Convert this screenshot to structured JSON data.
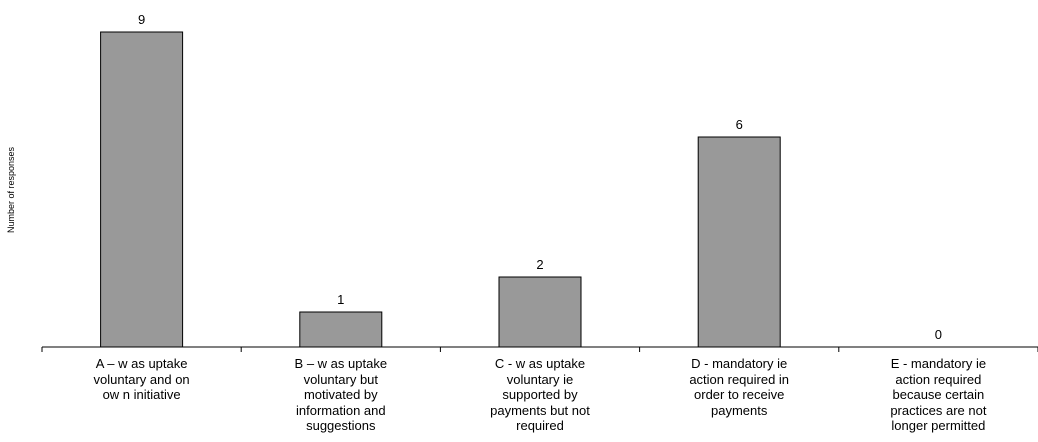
{
  "chart_data": {
    "type": "bar",
    "ylabel": "Number of responses",
    "ylim": [
      0,
      9
    ],
    "grid": false,
    "legend": "none",
    "categories": [
      [
        "A – w as uptake",
        "voluntary and on",
        "ow n initiative"
      ],
      [
        "B – w as uptake",
        "voluntary but",
        "motivated by",
        "information and",
        "suggestions"
      ],
      [
        "C - w as uptake",
        "voluntary ie",
        "supported by",
        "payments but not",
        "required"
      ],
      [
        "D - mandatory ie",
        "action required in",
        "order to receive",
        "payments"
      ],
      [
        "E - mandatory ie",
        "action required",
        "because certain",
        "practices are not",
        "longer permitted"
      ]
    ],
    "values": [
      9,
      1,
      2,
      6,
      0
    ],
    "data_labels": [
      "9",
      "1",
      "2",
      "6",
      "0"
    ],
    "colors": {
      "bar": "#999999",
      "bar_stroke": "#000000",
      "axis": "#000000"
    }
  }
}
